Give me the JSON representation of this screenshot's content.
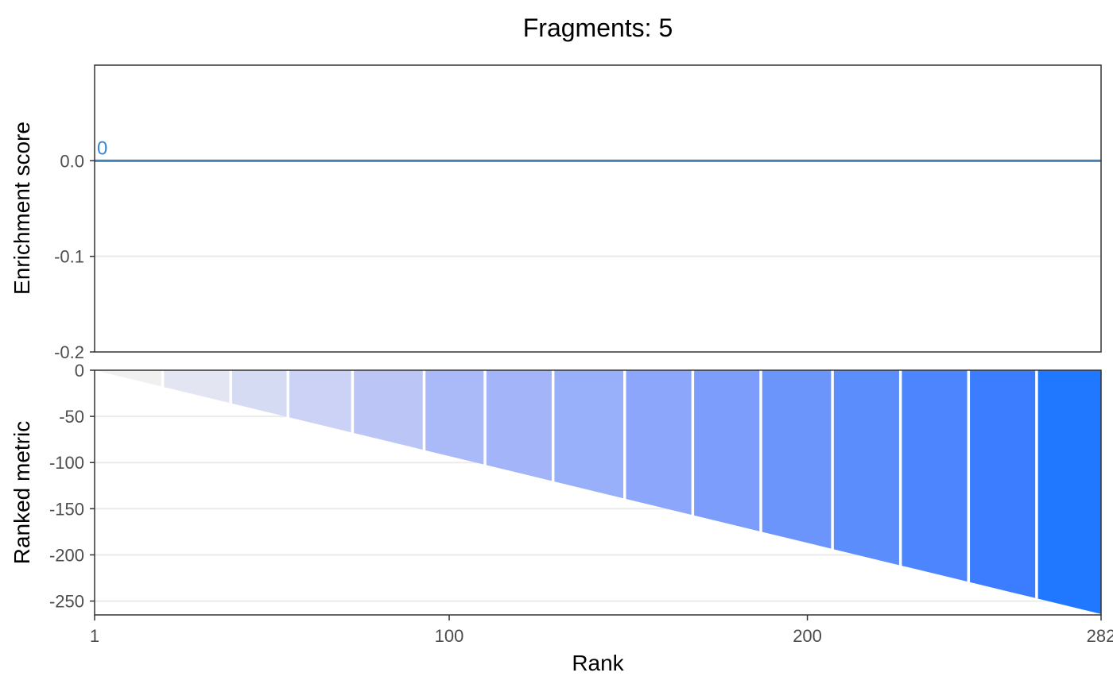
{
  "chart_data": [
    {
      "type": "line",
      "panel": "top",
      "title": "Fragments: 5",
      "ylabel": "Enrichment score",
      "ylim": [
        -0.2,
        0.1
      ],
      "yticks": [
        0.0,
        -0.1,
        -0.2
      ],
      "ytick_labels": [
        "0.0",
        "-0.1",
        "-0.2"
      ],
      "grid": true,
      "series": [
        {
          "x": [
            1,
            282
          ],
          "y": [
            0,
            0
          ]
        }
      ],
      "annotations": [
        {
          "text": "0",
          "x": 1,
          "y": 0
        }
      ],
      "colors": {
        "line": "#4682b4",
        "annotation": "#3a86d4"
      }
    },
    {
      "type": "area",
      "panel": "bottom",
      "xlabel": "Rank",
      "ylabel": "Ranked metric",
      "xlim": [
        1,
        282
      ],
      "ylim": [
        -265,
        0
      ],
      "xticks": [
        1,
        100,
        200,
        282
      ],
      "xtick_labels": [
        "1",
        "100",
        "200",
        "282"
      ],
      "yticks": [
        0,
        -50,
        -100,
        -150,
        -200,
        -250
      ],
      "ytick_labels": [
        "0",
        "-50",
        "-100",
        "-150",
        "-200",
        "-250"
      ],
      "grid": true,
      "metric_range": [
        0,
        -264
      ],
      "bin_boundaries": [
        20,
        39,
        55,
        73,
        93,
        110,
        129,
        149,
        168,
        187,
        207,
        226,
        245,
        264
      ],
      "bin_colors": [
        "#f0f0f0",
        "#e3e5f3",
        "#d6dbf4",
        "#cbd2f5",
        "#bbc6f7",
        "#aab9f8",
        "#a3b5f8",
        "#98aff9",
        "#8ba6fa",
        "#7c9dfb",
        "#6c95fc",
        "#5c8dfc",
        "#4c85fd",
        "#3b7dfe",
        "#1f78ff"
      ],
      "colors": {
        "separator": "#ffffff"
      }
    }
  ]
}
